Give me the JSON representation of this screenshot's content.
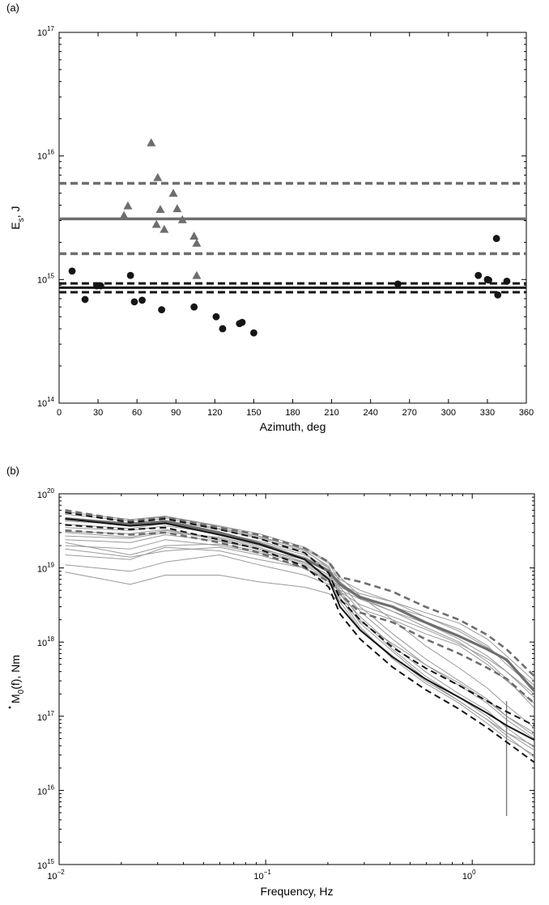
{
  "chart_data": [
    {
      "panel": "(a)",
      "type": "scatter",
      "xlabel": "Azimuth, deg",
      "ylabel_main": "E",
      "ylabel_sub": "s",
      "ylabel_rest": ", J",
      "xlim": [
        0,
        360
      ],
      "ylim": [
        100000000000000.0,
        1e+17
      ],
      "yscale": "log",
      "xticks": [
        0,
        30,
        60,
        90,
        120,
        150,
        180,
        210,
        240,
        270,
        300,
        330,
        360
      ],
      "yticks": [
        {
          "base": "10",
          "exp": "14",
          "value": 100000000000000.0
        },
        {
          "base": "10",
          "exp": "15",
          "value": 1000000000000000.0
        },
        {
          "base": "10",
          "exp": "16",
          "value": 1e+16
        },
        {
          "base": "10",
          "exp": "17",
          "value": 1e+17
        }
      ],
      "colors": {
        "gray": "#6e6e6e",
        "black": "#1a1a1a"
      },
      "triangles": [
        {
          "x": 50,
          "y": 3300000000000000.0
        },
        {
          "x": 53,
          "y": 3950000000000000.0
        },
        {
          "x": 71,
          "y": 1.28e+16
        },
        {
          "x": 75,
          "y": 2800000000000000.0
        },
        {
          "x": 76,
          "y": 6700000000000000.0
        },
        {
          "x": 78,
          "y": 3700000000000000.0
        },
        {
          "x": 81,
          "y": 2550000000000000.0
        },
        {
          "x": 88,
          "y": 5000000000000000.0
        },
        {
          "x": 91,
          "y": 3750000000000000.0
        },
        {
          "x": 95,
          "y": 3050000000000000.0
        },
        {
          "x": 104,
          "y": 2250000000000000.0
        },
        {
          "x": 106,
          "y": 1970000000000000.0
        },
        {
          "x": 106,
          "y": 1080000000000000.0
        }
      ],
      "circles": [
        {
          "x": 10,
          "y": 1170000000000000.0
        },
        {
          "x": 20,
          "y": 690000000000000.0
        },
        {
          "x": 29,
          "y": 890000000000000.0
        },
        {
          "x": 32,
          "y": 890000000000000.0
        },
        {
          "x": 55,
          "y": 1080000000000000.0
        },
        {
          "x": 58,
          "y": 660000000000000.0
        },
        {
          "x": 64,
          "y": 680000000000000.0
        },
        {
          "x": 79,
          "y": 570000000000000.0
        },
        {
          "x": 104,
          "y": 600000000000000.0
        },
        {
          "x": 121,
          "y": 500000000000000.0
        },
        {
          "x": 126,
          "y": 400000000000000.0
        },
        {
          "x": 139,
          "y": 440000000000000.0
        },
        {
          "x": 141,
          "y": 450000000000000.0
        },
        {
          "x": 150,
          "y": 370000000000000.0
        },
        {
          "x": 261,
          "y": 920000000000000.0
        },
        {
          "x": 323,
          "y": 1080000000000000.0
        },
        {
          "x": 330,
          "y": 1000000000000000.0
        },
        {
          "x": 331,
          "y": 990000000000000.0
        },
        {
          "x": 337,
          "y": 2150000000000000.0
        },
        {
          "x": 338,
          "y": 750000000000000.0
        },
        {
          "x": 345,
          "y": 970000000000000.0
        }
      ],
      "hlines": [
        {
          "y": 3100000000000000.0,
          "style": "solid",
          "color": "gray"
        },
        {
          "y": 6000000000000000.0,
          "style": "dashed",
          "color": "gray"
        },
        {
          "y": 1620000000000000.0,
          "style": "dashed",
          "color": "gray"
        },
        {
          "y": 860000000000000.0,
          "style": "solid",
          "color": "black"
        },
        {
          "y": 930000000000000.0,
          "style": "dashed",
          "color": "black"
        },
        {
          "y": 790000000000000.0,
          "style": "dashed",
          "color": "black"
        }
      ]
    },
    {
      "panel": "(b)",
      "type": "line",
      "xlabel": "Frequency, Hz",
      "ylabel_main": "M",
      "ylabel_sub": "0",
      "ylabel_rest": "(f), Nm",
      "xscale": "log",
      "yscale": "log",
      "xlim": [
        0.01,
        2
      ],
      "ylim": [
        1000000000000000.0,
        1e+20
      ],
      "xticks": [
        {
          "base": "10",
          "exp": "−2",
          "value": 0.01
        },
        {
          "base": "10",
          "exp": "−1",
          "value": 0.1
        },
        {
          "base": "10",
          "exp": "0",
          "value": 1
        }
      ],
      "yticks": [
        {
          "base": "10",
          "exp": "15",
          "value": 1000000000000000.0
        },
        {
          "base": "10",
          "exp": "16",
          "value": 1e+16
        },
        {
          "base": "10",
          "exp": "17",
          "value": 1e+17
        },
        {
          "base": "10",
          "exp": "18",
          "value": 1e+18
        },
        {
          "base": "10",
          "exp": "19",
          "value": 1e+19
        },
        {
          "base": "10",
          "exp": "20",
          "value": 1e+20
        }
      ],
      "x": [
        0.0107,
        0.0221,
        0.0327,
        0.0597,
        0.0925,
        0.1545,
        0.2022,
        0.229,
        0.2865,
        0.4109,
        0.5914,
        0.8634,
        1.1812,
        1.4659,
        1.9935
      ],
      "series": [
        {
          "style": "solid",
          "color": "gray",
          "width": 3.2,
          "values": [
            4.6e+19,
            3.9e+19,
            4.2e+19,
            3e+19,
            2.15e+19,
            1.32e+19,
            9e+18,
            6e+18,
            4e+18,
            3e+18,
            1.85e+18,
            1.2e+18,
            8e+17,
            5.8e+17,
            2.2e+17
          ]
        },
        {
          "style": "dashed",
          "color": "gray",
          "width": 2.6,
          "values": [
            6e+19,
            4.3e+19,
            4.8e+19,
            3.5e+19,
            2.8e+19,
            1.85e+19,
            1.2e+19,
            7.5e+18,
            6.5e+18,
            4.8e+18,
            3e+18,
            2e+18,
            1.25e+18,
            8e+17,
            3.5e+17
          ]
        },
        {
          "style": "dashed",
          "color": "gray",
          "width": 2.6,
          "values": [
            3.2e+19,
            2.8e+19,
            3e+19,
            2.2e+19,
            1.6e+19,
            1e+19,
            6.5e+18,
            4.5e+18,
            2.5e+18,
            1.85e+18,
            1.1e+18,
            7e+17,
            4.5e+17,
            3.2e+17,
            1.5e+17
          ]
        },
        {
          "style": "solid",
          "color": "black",
          "width": 2.0,
          "values": [
            4.6e+19,
            3.7e+19,
            4e+19,
            2.8e+19,
            2.1e+19,
            1.3e+19,
            7e+18,
            3e+18,
            1.45e+18,
            6.3e+17,
            3.2e+17,
            1.8e+17,
            1.1e+17,
            7.5e+16,
            4.8e+16
          ]
        },
        {
          "style": "dashed",
          "color": "black",
          "width": 2.0,
          "values": [
            5.6e+19,
            4.1e+19,
            4.6e+19,
            3.3e+19,
            2.5e+19,
            1.6e+19,
            8.5e+18,
            3.8e+18,
            2e+18,
            8.5e+17,
            4.5e+17,
            2.6e+17,
            1.6e+17,
            1.15e+17,
            7.5e+16
          ]
        },
        {
          "style": "dashed",
          "color": "black",
          "width": 2.0,
          "values": [
            3.8e+19,
            3.3e+19,
            3.5e+19,
            2.4e+19,
            1.8e+19,
            1.05e+19,
            5.5e+18,
            2.4e+18,
            1.1e+18,
            4.6e+17,
            2.3e+17,
            1.25e+17,
            7e+16,
            4.5e+16,
            2.4e+16
          ]
        },
        {
          "style": "thin",
          "color": "lightgray",
          "width": 1,
          "values": [
            8.8e+18,
            6e+18,
            8e+18,
            8e+18,
            6.5e+18,
            5.5e+18,
            4.5e+18,
            3.5e+18,
            2.8e+18,
            2e+18,
            1.3e+18,
            9e+17,
            5e+17,
            3e+17,
            1.5e+17
          ]
        },
        {
          "style": "thin",
          "color": "lightgray",
          "width": 1,
          "values": [
            1.1e+19,
            9e+18,
            1.2e+19,
            1.5e+19,
            1.1e+19,
            8e+18,
            6e+18,
            5e+18,
            3.8e+18,
            2.6e+18,
            1.8e+18,
            1.1e+18,
            6.5e+17,
            4e+17,
            1.8e+17
          ]
        },
        {
          "style": "thin",
          "color": "lightgray",
          "width": 1,
          "values": [
            1.5e+19,
            1.3e+19,
            1.9e+19,
            1.7e+19,
            1.3e+19,
            1e+19,
            7e+18,
            5.5e+18,
            4.2e+18,
            3e+18,
            2.2e+18,
            1.5e+18,
            9e+17,
            5e+17,
            2.4e+17
          ]
        },
        {
          "style": "thin",
          "color": "lightgray",
          "width": 1,
          "values": [
            2e+19,
            1.8e+19,
            2.4e+19,
            2e+19,
            1.6e+19,
            1.2e+19,
            8e+18,
            6e+18,
            4.5e+18,
            3.5e+18,
            2.5e+18,
            1.8e+18,
            1.1e+18,
            6.5e+17,
            3e+17
          ]
        },
        {
          "style": "thin",
          "color": "lightgray",
          "width": 1,
          "values": [
            2.4e+19,
            2.2e+19,
            2.8e+19,
            2.3e+19,
            1.8e+19,
            1.3e+19,
            9e+18,
            6.5e+18,
            4e+18,
            2.6e+18,
            1.6e+18,
            1e+18,
            5.5e+17,
            3.2e+17,
            1.3e+17
          ]
        },
        {
          "style": "thin",
          "color": "lightgray",
          "width": 1,
          "values": [
            2.7e+19,
            2.5e+19,
            3e+19,
            2.6e+19,
            2e+19,
            1.4e+19,
            9.5e+18,
            7e+18,
            5e+18,
            3.5e+18,
            2.2e+18,
            1.4e+18,
            8.5e+17,
            5.5e+17,
            2.6e+17
          ]
        },
        {
          "style": "thin",
          "color": "lightgray",
          "width": 1,
          "values": [
            3.1e+19,
            2.9e+19,
            3.3e+19,
            2.5e+19,
            1.9e+19,
            1.2e+19,
            8e+18,
            4.5e+18,
            2.2e+18,
            9e+17,
            4e+17,
            2e+17,
            1.2e+17,
            7e+16,
            3.8e+16
          ]
        },
        {
          "style": "thin",
          "color": "lightgray",
          "width": 1,
          "values": [
            3.5e+19,
            3.2e+19,
            3.7e+19,
            2.9e+19,
            2.2e+19,
            1.5e+19,
            1e+19,
            5.5e+18,
            2.6e+18,
            1.1e+18,
            5e+17,
            2.6e+17,
            1.5e+17,
            9e+16,
            5e+16
          ]
        },
        {
          "style": "thin",
          "color": "lightgray",
          "width": 1,
          "values": [
            3.9e+19,
            3.4e+19,
            4e+19,
            3e+19,
            2.3e+19,
            1.6e+19,
            9e+18,
            4e+18,
            1.6e+18,
            6e+17,
            2.8e+17,
            1.5e+17,
            8e+16,
            5e+16,
            3e+16
          ]
        },
        {
          "style": "thin",
          "color": "lightgray",
          "width": 1,
          "values": [
            4.3e+19,
            3.8e+19,
            4.4e+19,
            3.3e+19,
            2.5e+19,
            1.7e+19,
            1.05e+19,
            5e+18,
            2e+18,
            8e+17,
            3.5e+17,
            1.8e+17,
            1e+17,
            6e+16,
            3.5e+16
          ]
        },
        {
          "style": "thin",
          "color": "lightgray",
          "width": 1,
          "values": [
            4.8e+19,
            4e+19,
            4.7e+19,
            3.4e+19,
            2.6e+19,
            1.8e+19,
            1.15e+19,
            6.5e+18,
            3e+18,
            1.3e+18,
            6e+17,
            3e+17,
            1.7e+17,
            1e+17,
            6e+16
          ]
        },
        {
          "style": "thin",
          "color": "lightgray",
          "width": 1,
          "values": [
            5.3e+19,
            4.3e+19,
            4.9e+19,
            3.6e+19,
            2.7e+19,
            1.75e+19,
            1e+19,
            4.5e+18,
            1.8e+18,
            7.5e+17,
            3.2e+17,
            1.6e+17,
            9e+16,
            5.5e+16,
            2.8e+16
          ]
        },
        {
          "style": "thin",
          "color": "lightgray",
          "width": 1,
          "values": [
            5.7e+19,
            4.5e+19,
            5e+19,
            3.7e+19,
            2.9e+19,
            1.9e+19,
            1.2e+19,
            7.5e+18,
            4.2e+18,
            2e+18,
            9e+17,
            4.5e+17,
            2.4e+17,
            1.4e+17,
            7e+16
          ]
        },
        {
          "style": "thin",
          "color": "lightgray",
          "width": 1,
          "values": [
            3e+19,
            2.6e+19,
            3.2e+19,
            2.4e+19,
            1.8e+19,
            1.15e+19,
            7.5e+18,
            4.8e+18,
            3.2e+18,
            2.2e+18,
            1.5e+18,
            9.5e+17,
            6e+17,
            4e+17,
            2e+17
          ]
        },
        {
          "style": "thin",
          "color": "lightgray",
          "width": 1,
          "values": [
            2.2e+19,
            1.5e+19,
            2e+19,
            2.1e+19,
            1.7e+19,
            1.1e+19,
            7e+18,
            3.8e+18,
            1.9e+18,
            9.5e+17,
            5e+17,
            2.8e+17,
            1.6e+17,
            1e+17,
            5.5e+16
          ]
        },
        {
          "style": "thin",
          "color": "lightgray",
          "width": 1,
          "values": [
            1.8e+19,
            1.4e+19,
            1.7e+19,
            1.9e+19,
            1.5e+19,
            1e+19,
            6.5e+18,
            3.5e+18,
            1.5e+18,
            6.5e+17,
            3e+17,
            1.6e+17,
            9e+16,
            6e+16,
            4e+16
          ]
        },
        {
          "style": "spike",
          "color": "gray",
          "width": 1.2,
          "values": [
            null,
            null,
            null,
            null,
            null,
            null,
            null,
            null,
            null,
            null,
            null,
            null,
            null,
            2e+16,
            null
          ]
        }
      ],
      "spike": {
        "x": 1.4659,
        "y_top": 1.6e+17,
        "y_bottom": 4500000000000000.0
      }
    }
  ],
  "labels": {
    "panel_a": "(a)",
    "panel_b": "(b)"
  }
}
